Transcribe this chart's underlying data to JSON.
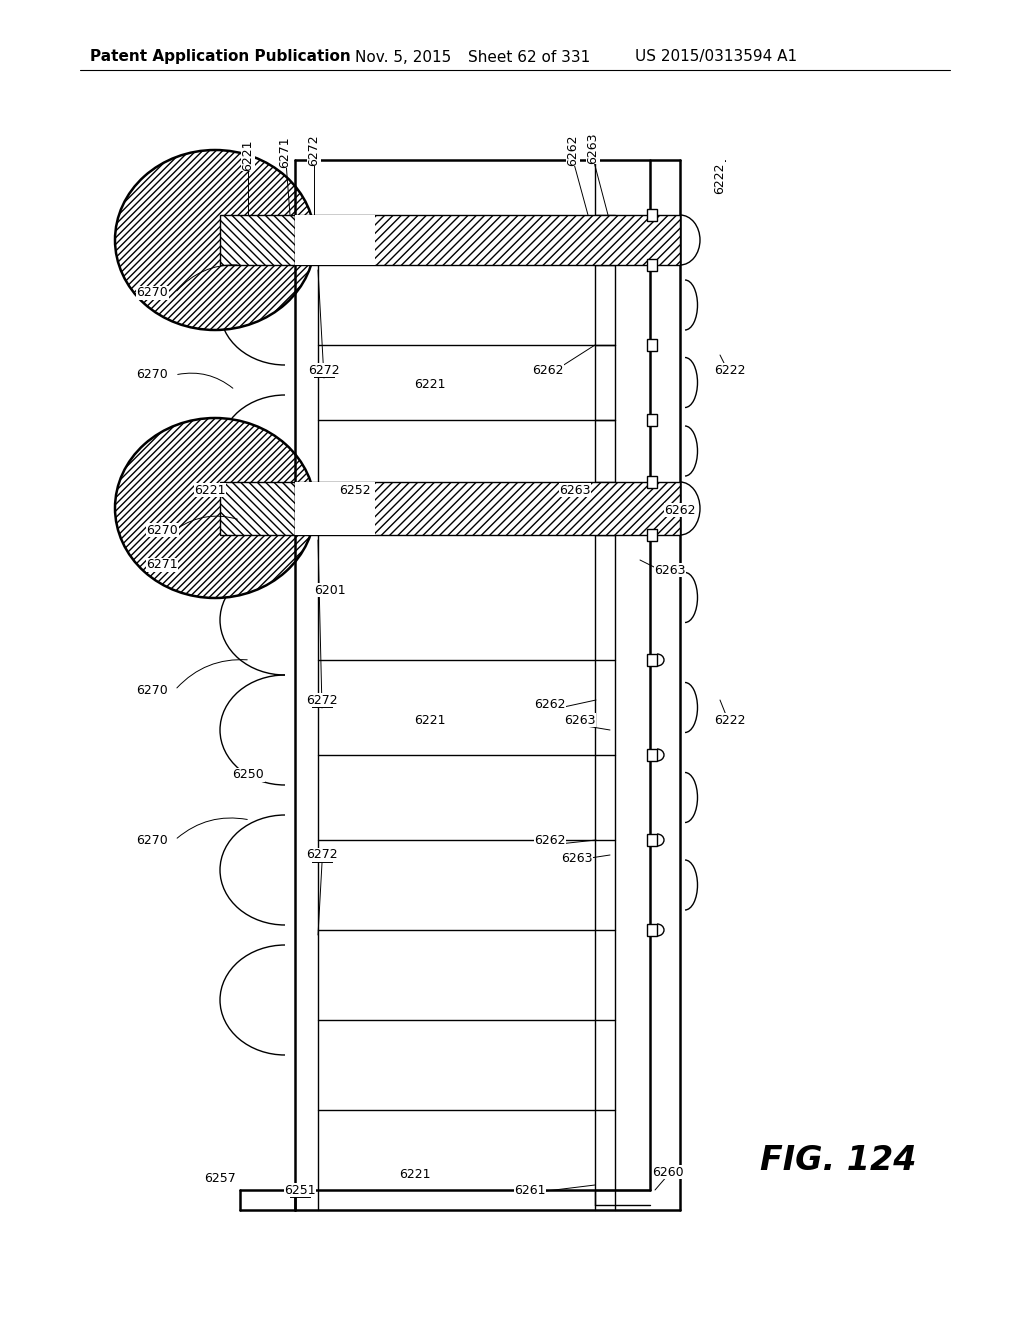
{
  "bg_color": "#ffffff",
  "header_text": "Patent Application Publication",
  "header_date": "Nov. 5, 2015",
  "header_sheet": "Sheet 62 of 331",
  "header_patent": "US 2015/0313594 A1",
  "fig_label": "FIG. 124",
  "text_color": "#000000",
  "lw_thin": 1.0,
  "lw_med": 1.8,
  "lw_thick": 2.5,
  "font_sz": 9
}
